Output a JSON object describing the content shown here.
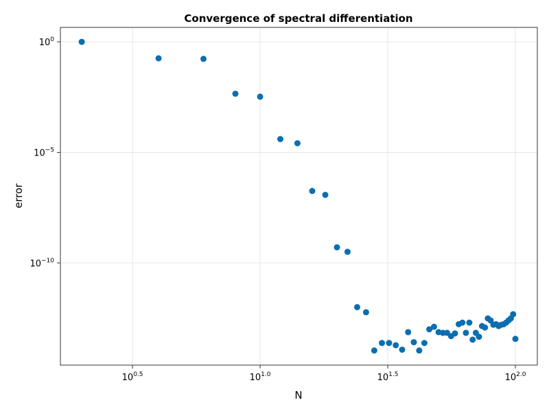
{
  "chart_data": {
    "type": "scatter",
    "title": "Convergence of spectral differentiation",
    "xlabel": "N",
    "ylabel": "error",
    "xscale": "log10",
    "yscale": "log10",
    "xlim": [
      1.65,
      121.9
    ],
    "ylim": [
      2.4e-15,
      4.5
    ],
    "grid": true,
    "color": "#0a6fb0",
    "xticks": [
      {
        "base": "10",
        "exp": "0.5",
        "value": 3.1623
      },
      {
        "base": "10",
        "exp": "1.0",
        "value": 10
      },
      {
        "base": "10",
        "exp": "1.5",
        "value": 31.623
      },
      {
        "base": "10",
        "exp": "2.0",
        "value": 100
      }
    ],
    "yticks": [
      {
        "base": "10",
        "exp": "0",
        "value": 1
      },
      {
        "base": "10",
        "exp": "−5",
        "value": 1e-05
      },
      {
        "base": "10",
        "exp": "−10",
        "value": 1e-10
      }
    ],
    "x": [
      2,
      4,
      6,
      8,
      10,
      12,
      14,
      16,
      18,
      20,
      22,
      24,
      26,
      28,
      30,
      32,
      34,
      36,
      38,
      40,
      42,
      44,
      46,
      48,
      50,
      52,
      54,
      56,
      58,
      60,
      62,
      64,
      66,
      68,
      70,
      72,
      74,
      76,
      78,
      80,
      82,
      84,
      86,
      88,
      90,
      92,
      94,
      96,
      98,
      100
    ],
    "y": [
      1.0,
      0.18,
      0.17,
      0.0045,
      0.0033,
      4e-05,
      2.6e-05,
      1.8e-07,
      1.2e-07,
      5.1e-10,
      3.2e-10,
      1e-12,
      5.9e-13,
      1.1e-14,
      2.4e-14,
      2.4e-14,
      1.9e-14,
      1.2e-14,
      7.4e-14,
      2.6e-14,
      1.1e-14,
      2.4e-14,
      1e-13,
      1.3e-13,
      7.4e-14,
      6.9e-14,
      6.9e-14,
      4.9e-14,
      6.5e-14,
      1.7e-13,
      2e-13,
      6.9e-14,
      2e-13,
      3.4e-14,
      6.9e-14,
      4.6e-14,
      1.4e-13,
      1.2e-13,
      3.1e-13,
      2.5e-13,
      1.6e-13,
      1.7e-13,
      1.4e-13,
      1.6e-13,
      1.7e-13,
      2e-13,
      2.5e-13,
      3.1e-13,
      4.8e-13,
      3.7e-14
    ]
  }
}
